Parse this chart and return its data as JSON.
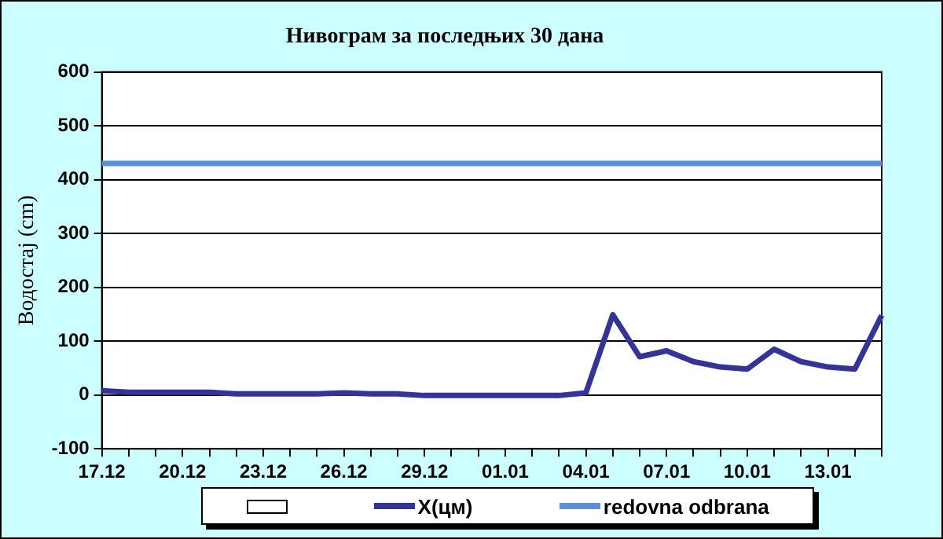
{
  "chart_data": {
    "type": "line",
    "title": "Нивограм за последњих 30 дана",
    "ylabel": "Водостај (cm)",
    "categories": [
      "17.12",
      null,
      null,
      "20.12",
      null,
      null,
      "23.12",
      null,
      null,
      "26.12",
      null,
      null,
      "29.12",
      null,
      null,
      "01.01",
      null,
      null,
      "04.01",
      null,
      null,
      "07.01",
      null,
      null,
      "10.01",
      null,
      null,
      "13.01",
      null,
      null
    ],
    "series": [
      {
        "name": "X(цм)",
        "color": "#333399",
        "values": [
          8,
          5,
          5,
          5,
          5,
          2,
          2,
          2,
          2,
          4,
          2,
          2,
          -1,
          -1,
          -1,
          -1,
          -1,
          -1,
          4,
          149,
          71,
          82,
          62,
          52,
          48,
          85,
          62,
          52,
          48,
          148
        ]
      }
    ],
    "ref_lines": [
      {
        "axis": "y",
        "value": 430,
        "label": "redovna odbrana",
        "color": "#5b8fd6"
      }
    ],
    "ylim": [
      -100,
      600
    ],
    "yticks": [
      -100,
      0,
      100,
      200,
      300,
      400,
      500,
      600
    ],
    "grid": "y",
    "legend": "bottom",
    "marker": "none",
    "line_style": "solid"
  }
}
